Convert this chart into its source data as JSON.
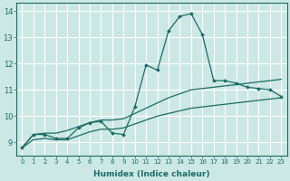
{
  "xlabel": "Humidex (Indice chaleur)",
  "ylabel": "",
  "xlim": [
    -0.5,
    23.5
  ],
  "ylim": [
    8.5,
    14.3
  ],
  "yticks": [
    9,
    10,
    11,
    12,
    13,
    14
  ],
  "xticks": [
    0,
    1,
    2,
    3,
    4,
    5,
    6,
    7,
    8,
    9,
    10,
    11,
    12,
    13,
    14,
    15,
    16,
    17,
    18,
    19,
    20,
    21,
    22,
    23
  ],
  "background_color": "#cce8e5",
  "grid_color": "#ffffff",
  "line_color": "#1a6b63",
  "x": [
    0,
    1,
    2,
    3,
    4,
    5,
    6,
    7,
    8,
    9,
    10,
    11,
    12,
    13,
    14,
    15,
    16,
    17,
    18,
    19,
    20,
    21,
    22,
    23
  ],
  "y_main": [
    8.8,
    9.3,
    9.3,
    9.15,
    9.15,
    9.55,
    9.75,
    9.8,
    9.35,
    9.3,
    10.35,
    11.95,
    11.75,
    13.25,
    13.8,
    13.9,
    13.1,
    11.35,
    11.35,
    11.25,
    11.1,
    11.05,
    11.0,
    10.75
  ],
  "y_upper": [
    8.8,
    9.3,
    9.35,
    9.35,
    9.45,
    9.6,
    9.75,
    9.85,
    9.85,
    9.9,
    10.1,
    10.3,
    10.5,
    10.7,
    10.85,
    11.0,
    11.05,
    11.1,
    11.15,
    11.2,
    11.25,
    11.3,
    11.35,
    11.4
  ],
  "y_lower": [
    8.8,
    9.1,
    9.15,
    9.1,
    9.1,
    9.25,
    9.4,
    9.5,
    9.5,
    9.55,
    9.7,
    9.85,
    10.0,
    10.1,
    10.2,
    10.3,
    10.35,
    10.4,
    10.45,
    10.5,
    10.55,
    10.6,
    10.65,
    10.7
  ]
}
